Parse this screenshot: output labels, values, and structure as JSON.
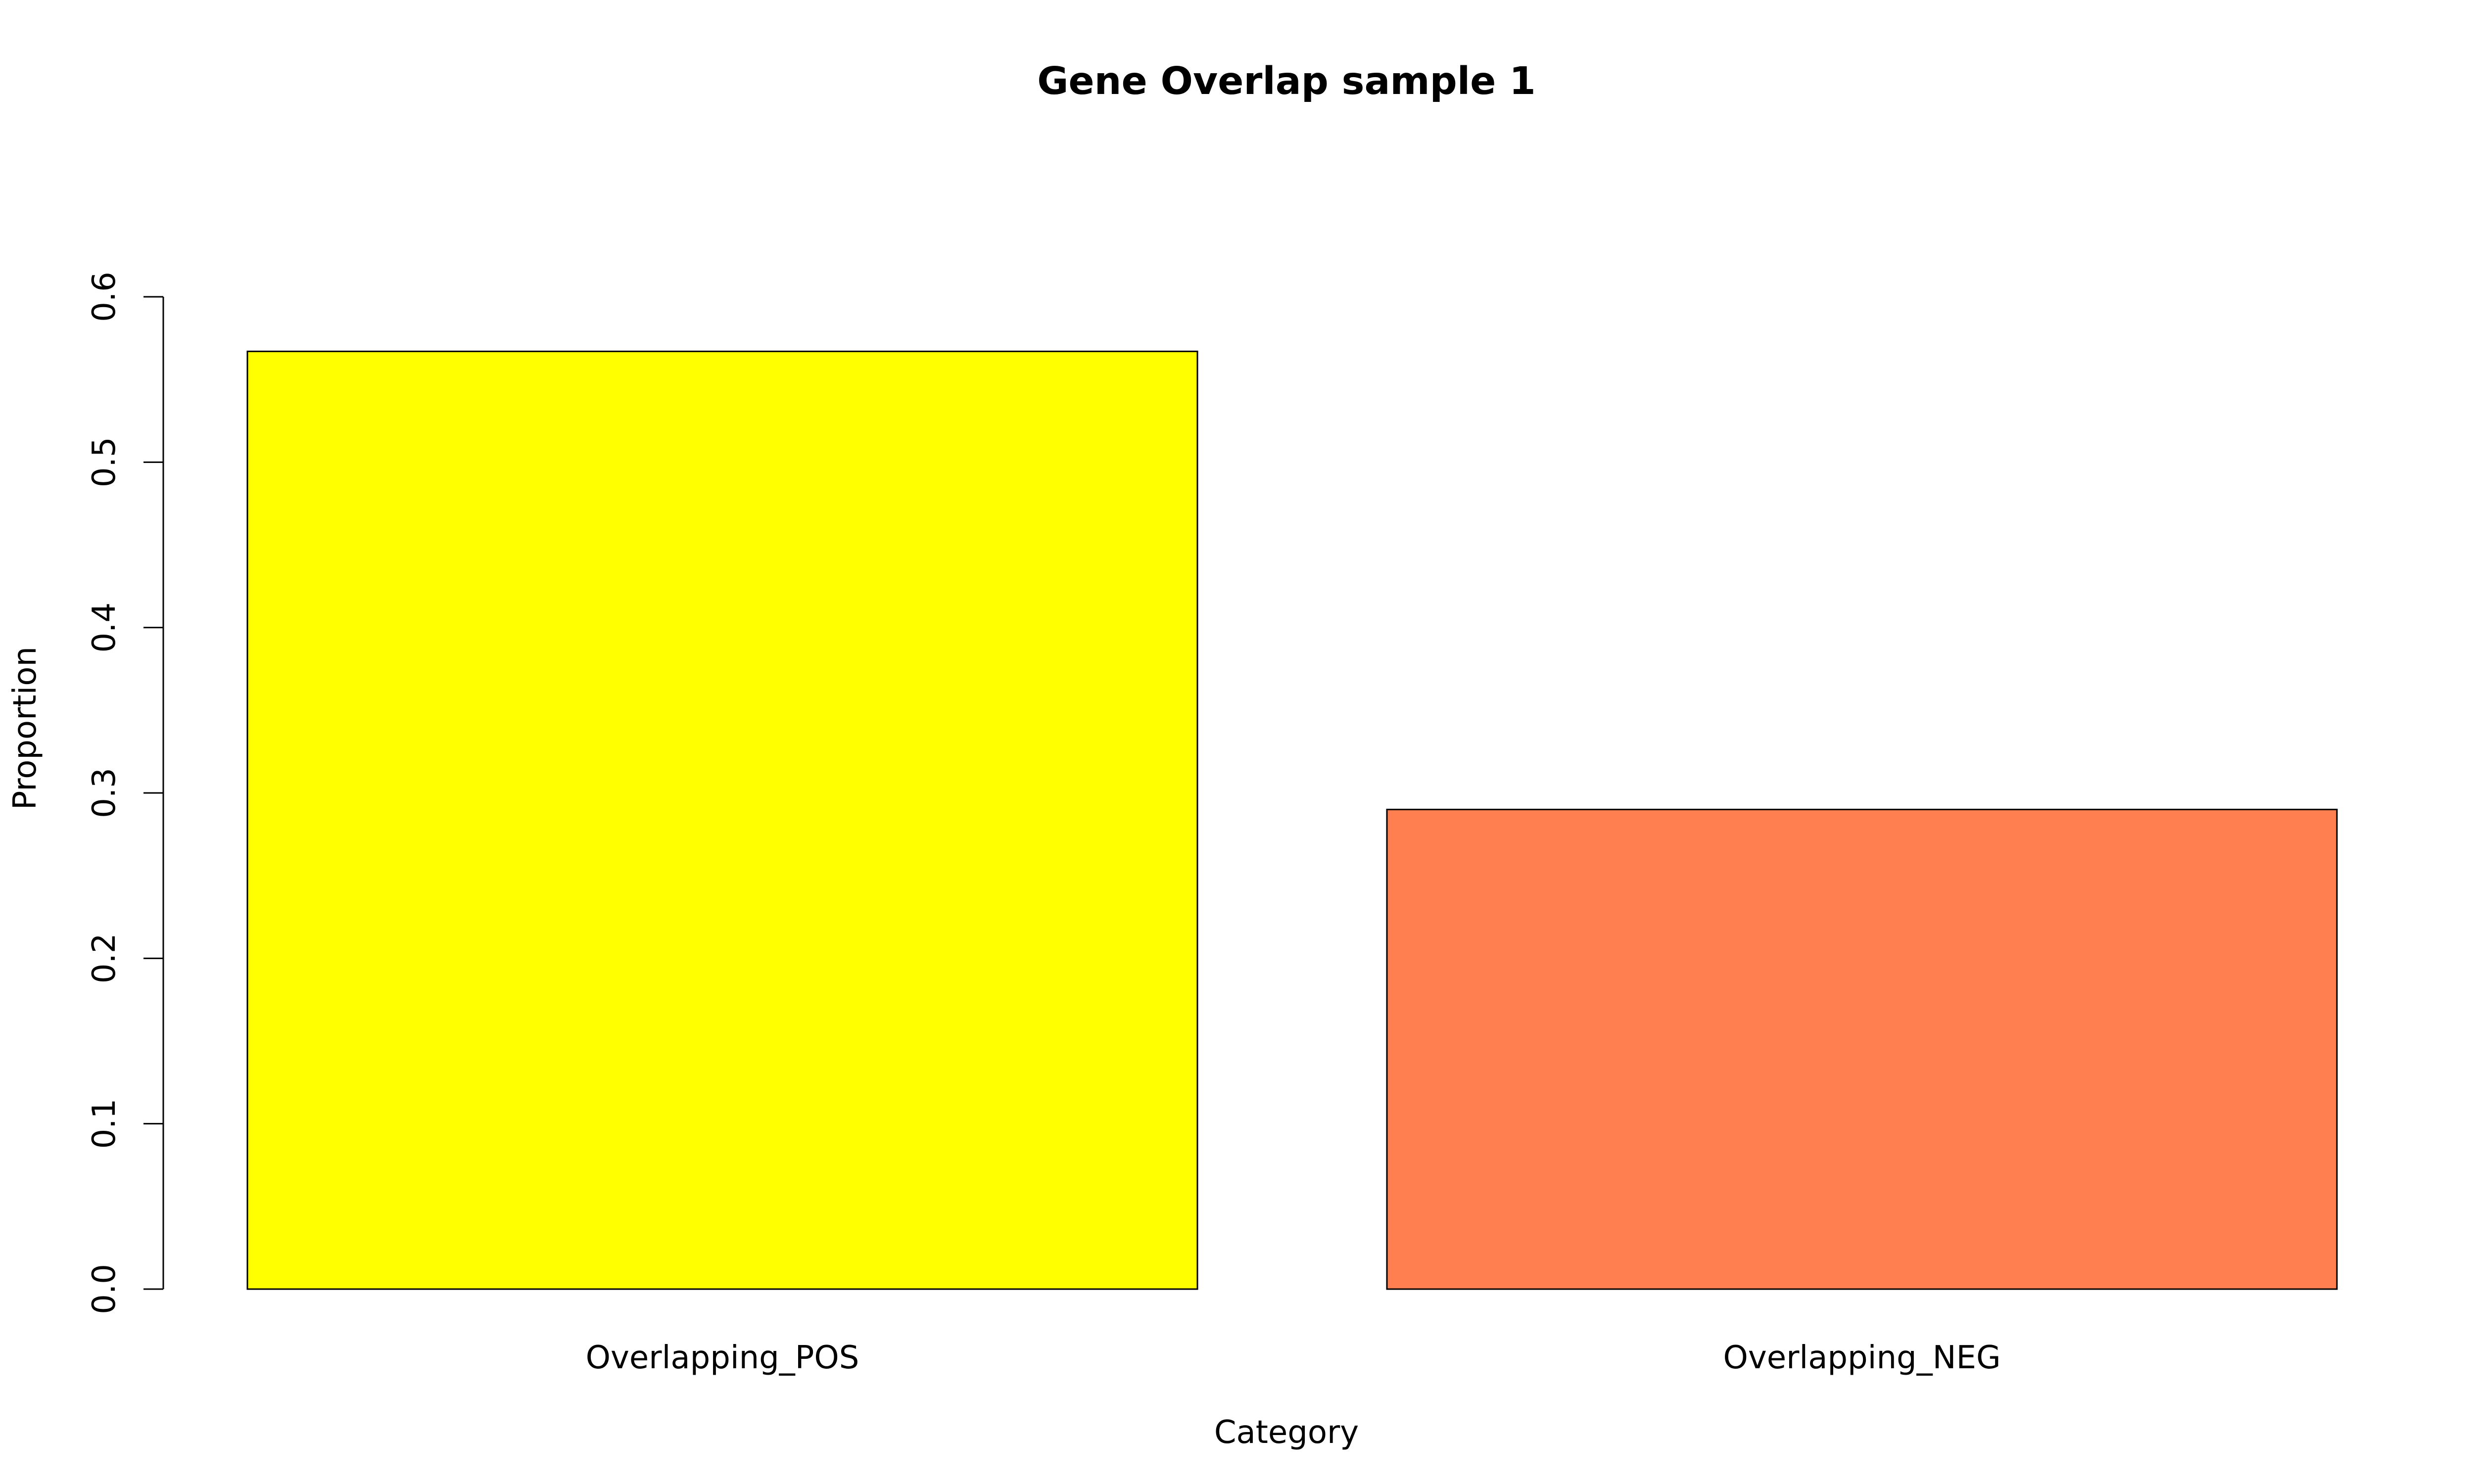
{
  "chart_data": {
    "type": "bar",
    "title": "Gene Overlap sample 1",
    "xlabel": "Category",
    "ylabel": "Proportion",
    "categories": [
      "Overlapping_POS",
      "Overlapping_NEG"
    ],
    "values": [
      0.567,
      0.29
    ],
    "colors": [
      "#FFFF00",
      "#FF7F50"
    ],
    "ylim": [
      0,
      0.6
    ],
    "yticks": [
      "0.0",
      "0.1",
      "0.2",
      "0.3",
      "0.4",
      "0.5",
      "0.6"
    ],
    "grid": false,
    "legend": "none"
  }
}
